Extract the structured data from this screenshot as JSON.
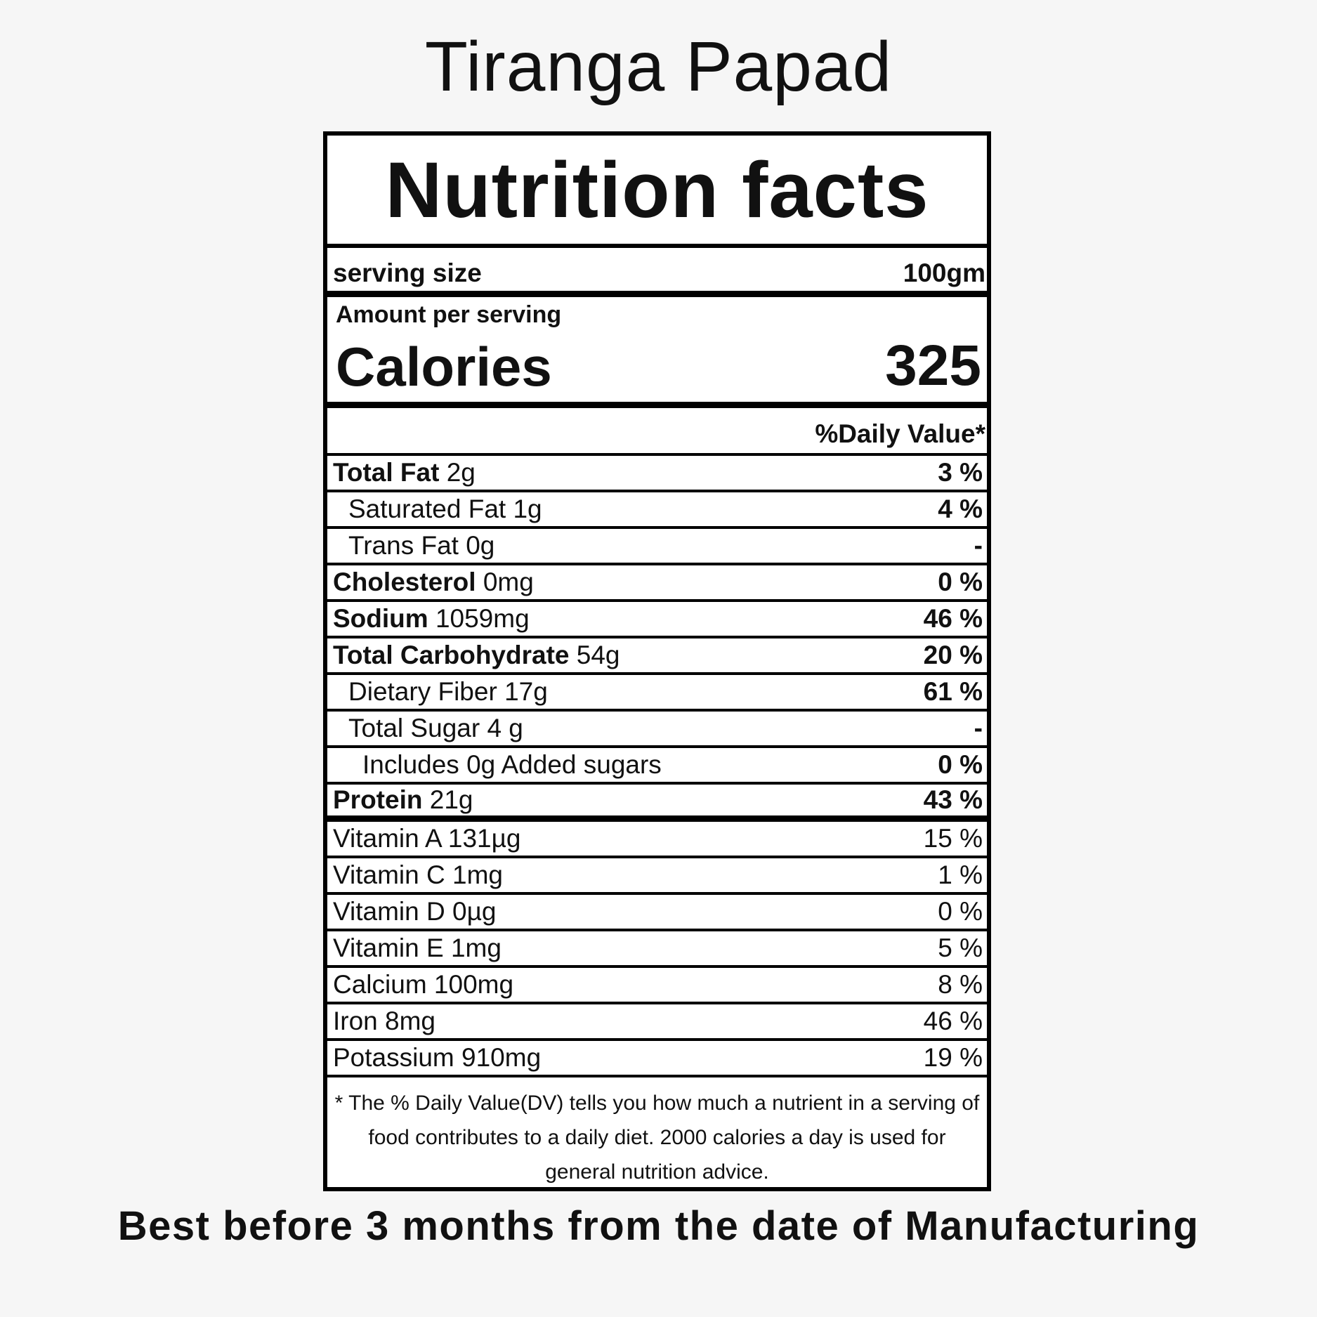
{
  "product_title": "Tiranga Papad",
  "label": {
    "title": "Nutrition facts",
    "serving_size_label": "serving size",
    "serving_size_value": "100gm",
    "amount_per_serving": "Amount per serving",
    "calories_label": "Calories",
    "calories_value": "325",
    "daily_value_header": "%Daily Value*",
    "nutrients": [
      {
        "name": "Total Fat",
        "amount": "2g",
        "dv": "3 %"
      },
      {
        "name": "Saturated Fat",
        "amount": "1g",
        "dv": "4 %"
      },
      {
        "name": "Trans Fat",
        "amount": "0g",
        "dv": "-"
      },
      {
        "name": "Cholesterol",
        "amount": "0mg",
        "dv": "0 %"
      },
      {
        "name": "Sodium",
        "amount": "1059mg",
        "dv": "46 %"
      },
      {
        "name": "Total Carbohydrate",
        "amount": "54g",
        "dv": "20 %"
      },
      {
        "name": "Dietary Fiber",
        "amount": "17g",
        "dv": "61 %"
      },
      {
        "name": "Total Sugar",
        "amount": "4 g",
        "dv": "-"
      },
      {
        "name": "Includes 0g Added sugars",
        "amount": "",
        "dv": "0 %"
      },
      {
        "name": "Protein",
        "amount": "21g",
        "dv": "43 %"
      }
    ],
    "vitamins": [
      {
        "text": "Vitamin A 131µg",
        "dv": "15 %"
      },
      {
        "text": "Vitamin C 1mg",
        "dv": "1 %"
      },
      {
        "text": "Vitamin D 0µg",
        "dv": "0 %"
      },
      {
        "text": "Vitamin E 1mg",
        "dv": "5 %"
      },
      {
        "text": "Calcium 100mg",
        "dv": "8 %"
      },
      {
        "text": "Iron 8mg",
        "dv": "46 %"
      },
      {
        "text": "Potassium 910mg",
        "dv": "19 %"
      }
    ],
    "footnote": "* The % Daily Value(DV) tells you how much a nutrient in a serving of food contributes to a daily diet. 2000 calories a day is used for general nutrition advice."
  },
  "shelf_life": "Best before 3 months from the date of Manufacturing"
}
